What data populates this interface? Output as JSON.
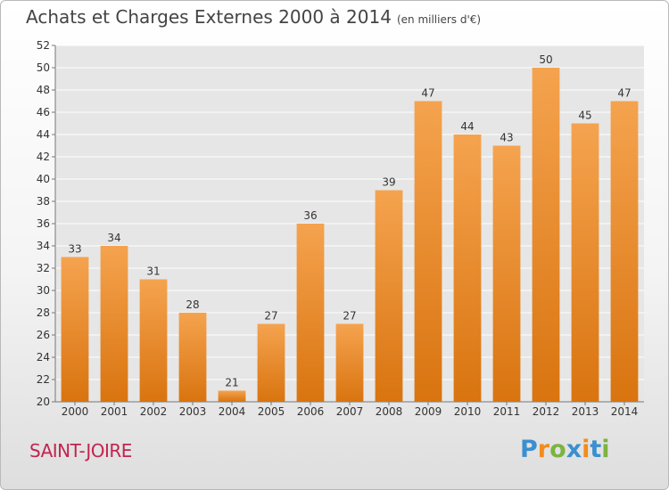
{
  "header": {
    "title": "Achats et Charges Externes 2000 à 2014",
    "subtitle": "(en milliers d'€)"
  },
  "commune": "SAINT-JOIRE",
  "logo": {
    "text": "Proxiti",
    "letters": [
      "P",
      "r",
      "o",
      "x",
      "i",
      "t",
      "i"
    ]
  },
  "colors": {
    "bar": "#f08a24",
    "bar_light": "#f5a34f",
    "title": "#444444",
    "commune": "#c2244f"
  },
  "chart_data": {
    "type": "bar",
    "title": "Achats et Charges Externes 2000 à 2014",
    "subtitle": "(en milliers d'€)",
    "categories": [
      "2000",
      "2001",
      "2002",
      "2003",
      "2004",
      "2005",
      "2006",
      "2007",
      "2008",
      "2009",
      "2010",
      "2011",
      "2012",
      "2013",
      "2014"
    ],
    "values": [
      33,
      34,
      31,
      28,
      21,
      27,
      36,
      27,
      39,
      47,
      44,
      43,
      50,
      45,
      47
    ],
    "ylim": [
      20,
      52
    ],
    "yticks": [
      20,
      22,
      24,
      26,
      28,
      30,
      32,
      34,
      36,
      38,
      40,
      42,
      44,
      46,
      48,
      50,
      52
    ],
    "grid": true,
    "xlabel": "",
    "ylabel": ""
  }
}
